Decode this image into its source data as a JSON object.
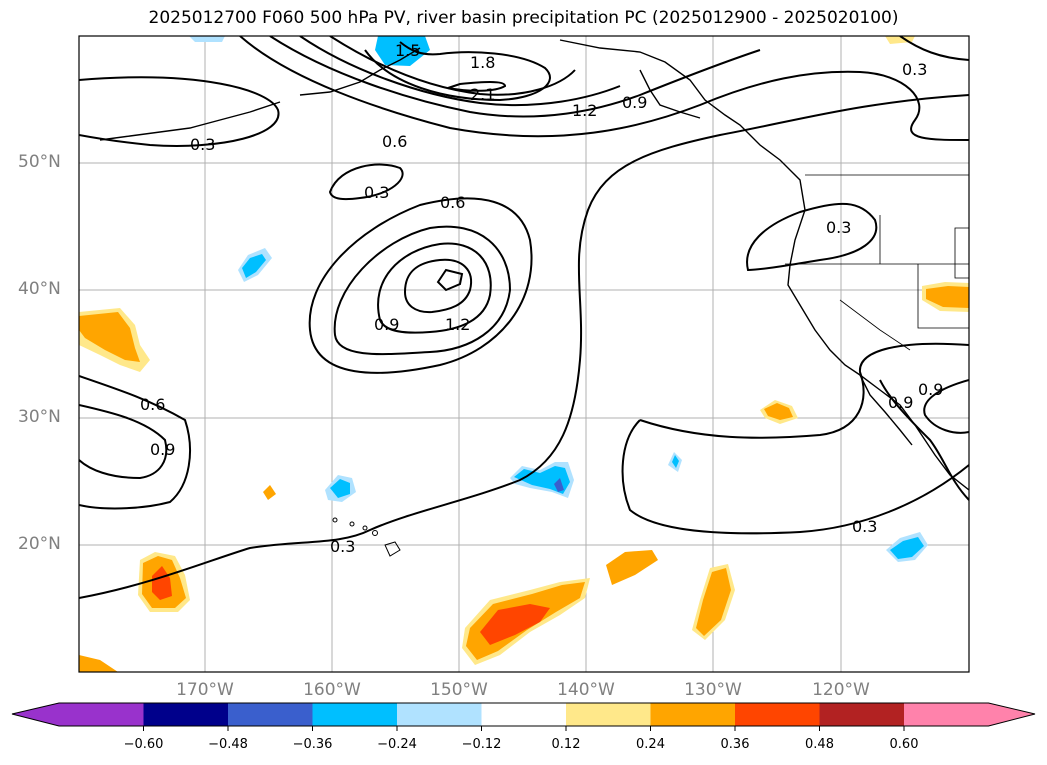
{
  "title": "2025012700 F060 500 hPa PV, river basin precipitation PC (2025012900 - 2025020100)",
  "lat_labels": [
    "50°N",
    "40°N",
    "30°N",
    "20°N"
  ],
  "lon_labels": [
    "170°W",
    "160°W",
    "150°W",
    "140°W",
    "130°W",
    "120°W"
  ],
  "contour_labels": [
    "1.5",
    "1.8",
    "2.1",
    "1.2",
    "0.9",
    "0.3",
    "0.6",
    "0.3",
    "0.6",
    "0.3",
    "0.9",
    "1.2",
    "0.6",
    "0.9",
    "0.3",
    "0.3",
    "0.9",
    "0.9",
    "0.3"
  ],
  "colorbar": {
    "ticks": [
      "−0.60",
      "−0.48",
      "−0.36",
      "−0.24",
      "−0.12",
      "0.12",
      "0.24",
      "0.36",
      "0.48",
      "0.60"
    ],
    "colors": [
      "#9932cc",
      "#00008b",
      "#3a5fcd",
      "#00bfff",
      "#b0e2ff",
      "#ffffff",
      "#ffe88a",
      "#ffa500",
      "#ff4500",
      "#b22222",
      "#ff82ab"
    ]
  }
}
